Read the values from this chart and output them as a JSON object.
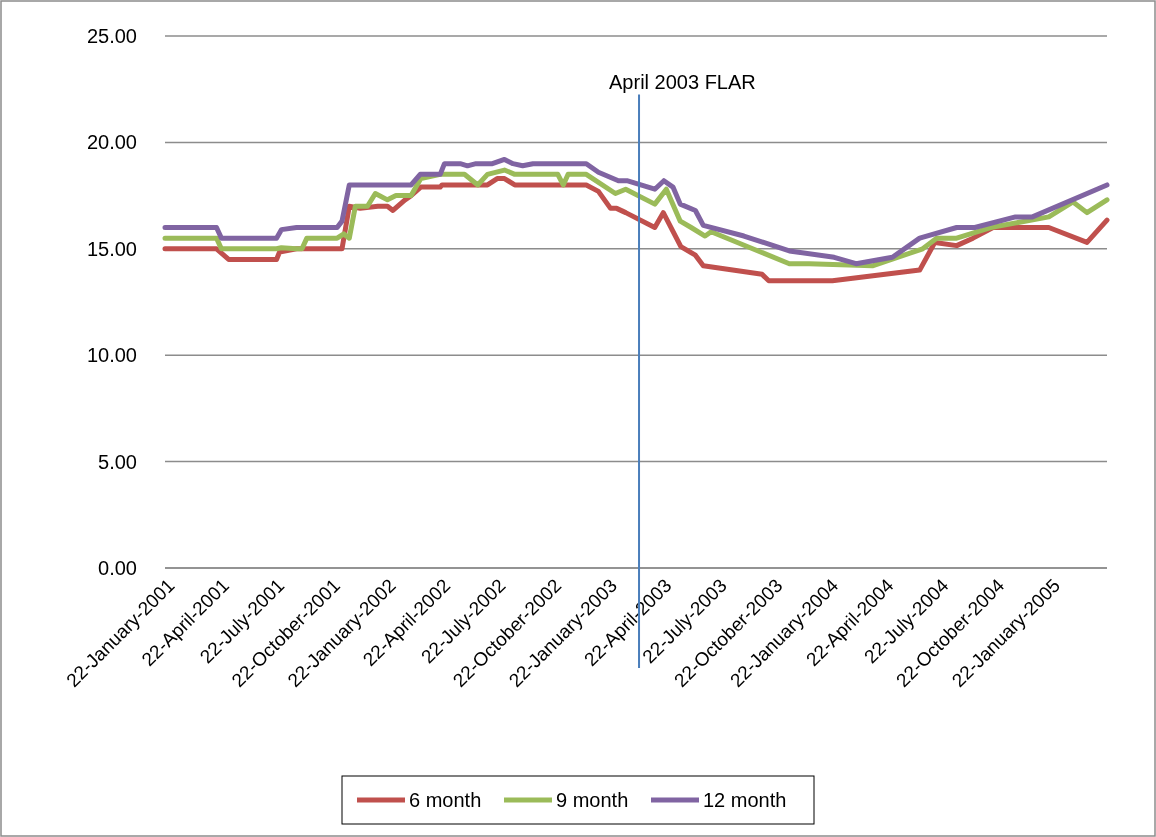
{
  "chart_data": {
    "type": "line",
    "xlim": [
      "2001-01-22",
      "2005-04-25"
    ],
    "ylim": [
      0,
      25
    ],
    "yticks": [
      {
        "value": 0,
        "label": "0.00"
      },
      {
        "value": 5,
        "label": "5.00"
      },
      {
        "value": 10,
        "label": "10.00"
      },
      {
        "value": 15,
        "label": "15.00"
      },
      {
        "value": 20,
        "label": "20.00"
      },
      {
        "value": 25,
        "label": "25.00"
      }
    ],
    "xticks": [
      {
        "value": "2001-01-22",
        "label": "22-January-2001"
      },
      {
        "value": "2001-04-22",
        "label": "22-April-2001"
      },
      {
        "value": "2001-07-22",
        "label": "22-July-2001"
      },
      {
        "value": "2001-10-22",
        "label": "22-October-2001"
      },
      {
        "value": "2002-01-22",
        "label": "22-January-2002"
      },
      {
        "value": "2002-04-22",
        "label": "22-April-2002"
      },
      {
        "value": "2002-07-22",
        "label": "22-July-2002"
      },
      {
        "value": "2002-10-22",
        "label": "22-October-2002"
      },
      {
        "value": "2003-01-22",
        "label": "22-January-2003"
      },
      {
        "value": "2003-04-22",
        "label": "22-April-2003"
      },
      {
        "value": "2003-07-22",
        "label": "22-July-2003"
      },
      {
        "value": "2003-10-22",
        "label": "22-October-2003"
      },
      {
        "value": "2004-01-22",
        "label": "22-January-2004"
      },
      {
        "value": "2004-04-22",
        "label": "22-April-2004"
      },
      {
        "value": "2004-07-22",
        "label": "22-July-2004"
      },
      {
        "value": "2004-10-22",
        "label": "22-October-2004"
      },
      {
        "value": "2005-01-22",
        "label": "22-January-2005"
      }
    ],
    "grid": "y",
    "legend": "bottom",
    "line_style": "solid",
    "marker": "none",
    "ref_lines": [
      {
        "axis": "x",
        "value": "2003-03-15",
        "label": "April 2003 FLAR",
        "color": "#4a7ebb"
      }
    ],
    "series": [
      {
        "name": "6 month",
        "color": "#c0504d",
        "x": [
          "2001-01-22",
          "2001-04-17",
          "2001-05-07",
          "2001-07-25",
          "2001-07-30",
          "2001-08-27",
          "2001-11-10",
          "2001-11-22",
          "2001-12-10",
          "2002-01-08",
          "2002-01-24",
          "2002-02-02",
          "2002-02-22",
          "2002-03-04",
          "2002-03-20",
          "2002-04-21",
          "2002-04-24",
          "2002-06-22",
          "2002-07-08",
          "2002-07-24",
          "2002-08-05",
          "2002-08-22",
          "2002-09-21",
          "2002-12-18",
          "2003-01-07",
          "2003-01-27",
          "2003-02-06",
          "2003-02-21",
          "2003-04-10",
          "2003-04-24",
          "2003-05-23",
          "2003-06-16",
          "2003-06-29",
          "2003-10-04",
          "2003-10-15",
          "2004-01-28",
          "2004-06-20",
          "2004-07-15",
          "2004-08-20",
          "2004-09-16",
          "2004-10-19",
          "2005-01-19",
          "2005-03-23",
          "2005-04-25"
        ],
        "values": [
          15.0,
          15.0,
          14.5,
          14.5,
          14.85,
          15.0,
          15.0,
          17.0,
          16.9,
          17.0,
          17.0,
          16.8,
          17.3,
          17.5,
          17.9,
          17.9,
          18.0,
          18.0,
          18.0,
          18.3,
          18.3,
          18.0,
          18.0,
          18.0,
          17.7,
          16.9,
          16.9,
          16.7,
          16.0,
          16.7,
          15.1,
          14.7,
          14.2,
          13.8,
          13.5,
          13.5,
          14.0,
          15.3,
          15.15,
          15.5,
          16.0,
          16.0,
          15.3,
          16.35
        ]
      },
      {
        "name": "9 month",
        "color": "#9bbb59",
        "x": [
          "2001-01-22",
          "2001-04-17",
          "2001-04-25",
          "2001-07-25",
          "2001-08-02",
          "2001-08-27",
          "2001-09-05",
          "2001-09-13",
          "2001-11-02",
          "2001-11-13",
          "2001-11-22",
          "2001-12-02",
          "2001-12-22",
          "2002-01-04",
          "2002-01-24",
          "2002-02-07",
          "2002-03-04",
          "2002-03-20",
          "2002-04-21",
          "2002-05-31",
          "2002-06-22",
          "2002-07-08",
          "2002-08-05",
          "2002-08-22",
          "2002-11-01",
          "2002-11-10",
          "2002-11-18",
          "2002-12-18",
          "2003-02-04",
          "2003-02-21",
          "2003-04-10",
          "2003-04-29",
          "2003-05-22",
          "2003-06-09",
          "2003-07-02",
          "2003-07-12",
          "2003-11-18",
          "2003-12-21",
          "2004-04-03",
          "2004-06-25",
          "2004-07-18",
          "2004-08-20",
          "2004-10-15",
          "2005-01-19",
          "2005-02-28",
          "2005-03-23",
          "2005-04-25"
        ],
        "values": [
          15.5,
          15.5,
          15.0,
          15.0,
          15.05,
          15.0,
          15.0,
          15.5,
          15.5,
          15.7,
          15.5,
          17.0,
          17.0,
          17.6,
          17.3,
          17.5,
          17.5,
          18.3,
          18.5,
          18.5,
          18.0,
          18.5,
          18.7,
          18.5,
          18.5,
          18.0,
          18.5,
          18.5,
          17.6,
          17.8,
          17.1,
          17.8,
          16.3,
          16.0,
          15.6,
          15.8,
          14.3,
          14.3,
          14.2,
          15.0,
          15.5,
          15.5,
          16.0,
          16.5,
          17.2,
          16.7,
          17.3
        ]
      },
      {
        "name": "12 month",
        "color": "#8064a2",
        "x": [
          "2001-01-22",
          "2001-04-17",
          "2001-04-25",
          "2001-07-25",
          "2001-08-02",
          "2001-08-27",
          "2001-11-02",
          "2001-11-10",
          "2001-11-22",
          "2002-03-04",
          "2002-03-19",
          "2002-04-21",
          "2002-04-28",
          "2002-05-24",
          "2002-06-05",
          "2002-06-19",
          "2002-07-16",
          "2002-08-05",
          "2002-08-19",
          "2002-09-04",
          "2002-09-21",
          "2002-12-18",
          "2003-01-07",
          "2003-02-09",
          "2003-02-23",
          "2003-04-10",
          "2003-04-25",
          "2003-05-10",
          "2003-05-22",
          "2003-06-16",
          "2003-06-29",
          "2003-09-04",
          "2003-11-18",
          "2004-01-31",
          "2004-03-07",
          "2004-05-06",
          "2004-06-20",
          "2004-08-20",
          "2004-09-19",
          "2004-11-25",
          "2004-12-23",
          "2005-04-25"
        ],
        "values": [
          16.0,
          16.0,
          15.5,
          15.5,
          15.9,
          16.0,
          16.0,
          16.3,
          18.0,
          18.0,
          18.5,
          18.5,
          19.0,
          19.0,
          18.9,
          19.0,
          19.0,
          19.2,
          19.0,
          18.9,
          19.0,
          19.0,
          18.6,
          18.2,
          18.2,
          17.8,
          18.2,
          17.9,
          17.1,
          16.8,
          16.1,
          15.6,
          14.9,
          14.6,
          14.3,
          14.6,
          15.5,
          16.0,
          16.0,
          16.5,
          16.5,
          18.0
        ]
      }
    ]
  }
}
